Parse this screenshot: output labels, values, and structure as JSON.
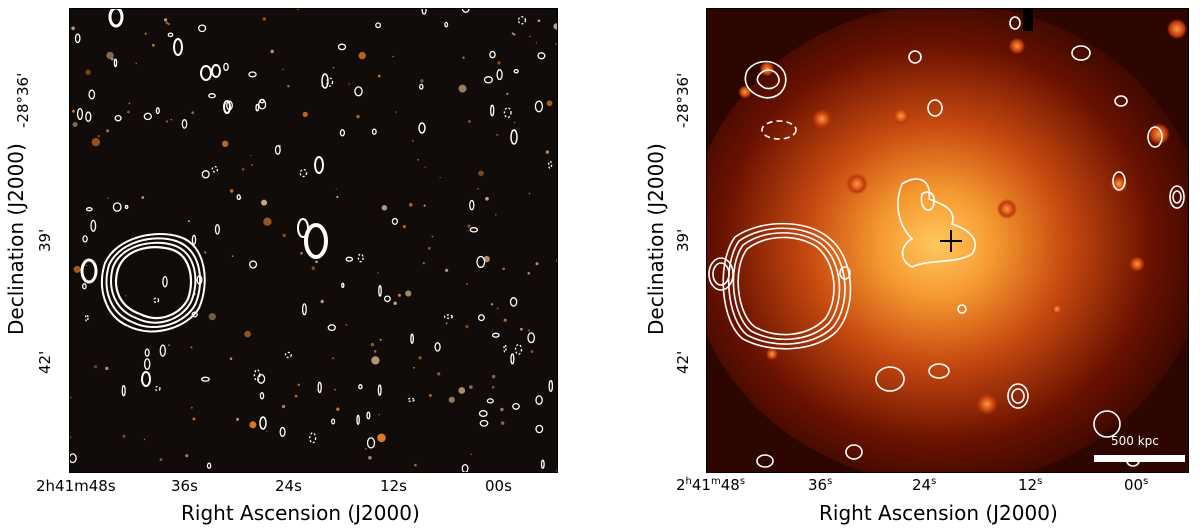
{
  "left_panel": {
    "y_axis_title": "Declination (J2000)",
    "x_axis_title": "Right Ascension (J2000)",
    "y_ticks": [
      "-28°36'",
      "39'",
      "42'"
    ],
    "x_ticks": [
      "2h41m48s",
      "36s",
      "24s",
      "12s",
      "00s"
    ],
    "colormap": "dark-orange optical composite",
    "contour_color": "#ffffff"
  },
  "right_panel": {
    "y_axis_title": "Declination (J2000)",
    "x_axis_title": "Right Ascension (J2000)",
    "y_ticks": [
      "-28°36'",
      "39'",
      "42'"
    ],
    "x_ticks": [
      {
        "base": "2",
        "sup1": "h",
        "mid": "41",
        "sup2": "m",
        "mid2": "48",
        "sup3": "s"
      },
      {
        "base": "36",
        "sup": "s"
      },
      {
        "base": "24",
        "sup": "s"
      },
      {
        "base": "12",
        "sup": "s"
      },
      {
        "base": "00",
        "sup": "s"
      }
    ],
    "scale_bar_label": "500 kpc",
    "colormap": "hot (X-ray emission)",
    "contour_color": "#ffffff",
    "marker": "cross"
  }
}
